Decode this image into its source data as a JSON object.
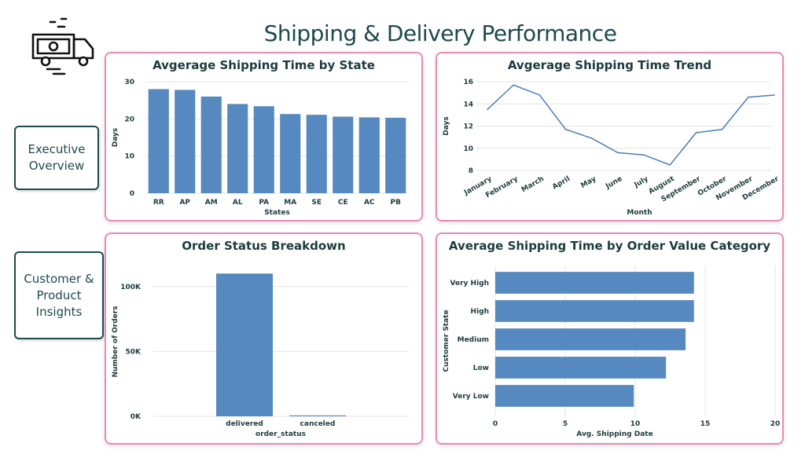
{
  "page": {
    "title": "Shipping & Delivery Performance"
  },
  "nav": {
    "executive": "Executive\nOverview",
    "customer": "Customer &\nProduct\nInsights"
  },
  "colors": {
    "bar": "#5589bf",
    "line": "#4a7eb8",
    "accent": "#1d4a4d",
    "card_border": "#e88ab8",
    "grid": "#e4e4e4"
  },
  "charts": {
    "state": {
      "title": "Avgerage Shipping Time by State",
      "chart_data": {
        "type": "bar",
        "title": "Avgerage Shipping Time by State",
        "categories": [
          "RR",
          "AP",
          "AM",
          "AL",
          "PA",
          "MA",
          "SE",
          "CE",
          "AC",
          "PB"
        ],
        "values": [
          28.0,
          27.8,
          26.0,
          24.0,
          23.4,
          21.3,
          21.1,
          20.6,
          20.4,
          20.3
        ],
        "xlabel": "States",
        "ylabel": "Days",
        "ylim": [
          0,
          30
        ],
        "yticks": [
          "0",
          "10",
          "20",
          "30"
        ],
        "ytick_values": [
          0,
          10,
          20,
          30
        ]
      }
    },
    "trend": {
      "title": "Avgerage Shipping Time Trend",
      "chart_data": {
        "type": "line",
        "title": "Avgerage Shipping Time Trend",
        "categories": [
          "January",
          "February",
          "March",
          "April",
          "May",
          "June",
          "July",
          "August",
          "September",
          "October",
          "November",
          "December"
        ],
        "values": [
          13.5,
          15.7,
          14.8,
          11.7,
          10.9,
          9.6,
          9.4,
          8.5,
          11.4,
          11.7,
          14.6,
          14.8
        ],
        "xlabel": "Month",
        "ylabel": "Days",
        "ylim": [
          8,
          16
        ],
        "yticks": [
          "8",
          "10",
          "12",
          "14",
          "16"
        ],
        "ytick_values": [
          8,
          10,
          12,
          14,
          16
        ]
      }
    },
    "status": {
      "title": "Order Status Breakdown",
      "chart_data": {
        "type": "bar",
        "title": "Order Status Breakdown",
        "categories": [
          "delivered",
          "canceled"
        ],
        "values": [
          110000,
          700
        ],
        "xlabel": "order_status",
        "ylabel": "Number of Orders",
        "ylim": [
          0,
          115000
        ],
        "yticks": [
          "0K",
          "50K",
          "100K"
        ],
        "ytick_values": [
          0,
          50000,
          100000
        ]
      }
    },
    "value": {
      "title": "Average Shipping Time by Order Value Category",
      "chart_data": {
        "type": "bar",
        "orientation": "horizontal",
        "title": "Average Shipping Time by Order Value Category",
        "categories": [
          "Very High",
          "High",
          "Medium",
          "Low",
          "Very Low"
        ],
        "values": [
          14.2,
          14.2,
          13.6,
          12.2,
          9.9
        ],
        "xlabel": "Avg. Shipping Date",
        "ylabel": "Customer State",
        "xlim": [
          0,
          20
        ],
        "xticks": [
          "0",
          "5",
          "10",
          "15",
          "20"
        ],
        "xtick_values": [
          0,
          5,
          10,
          15,
          20
        ]
      }
    }
  }
}
